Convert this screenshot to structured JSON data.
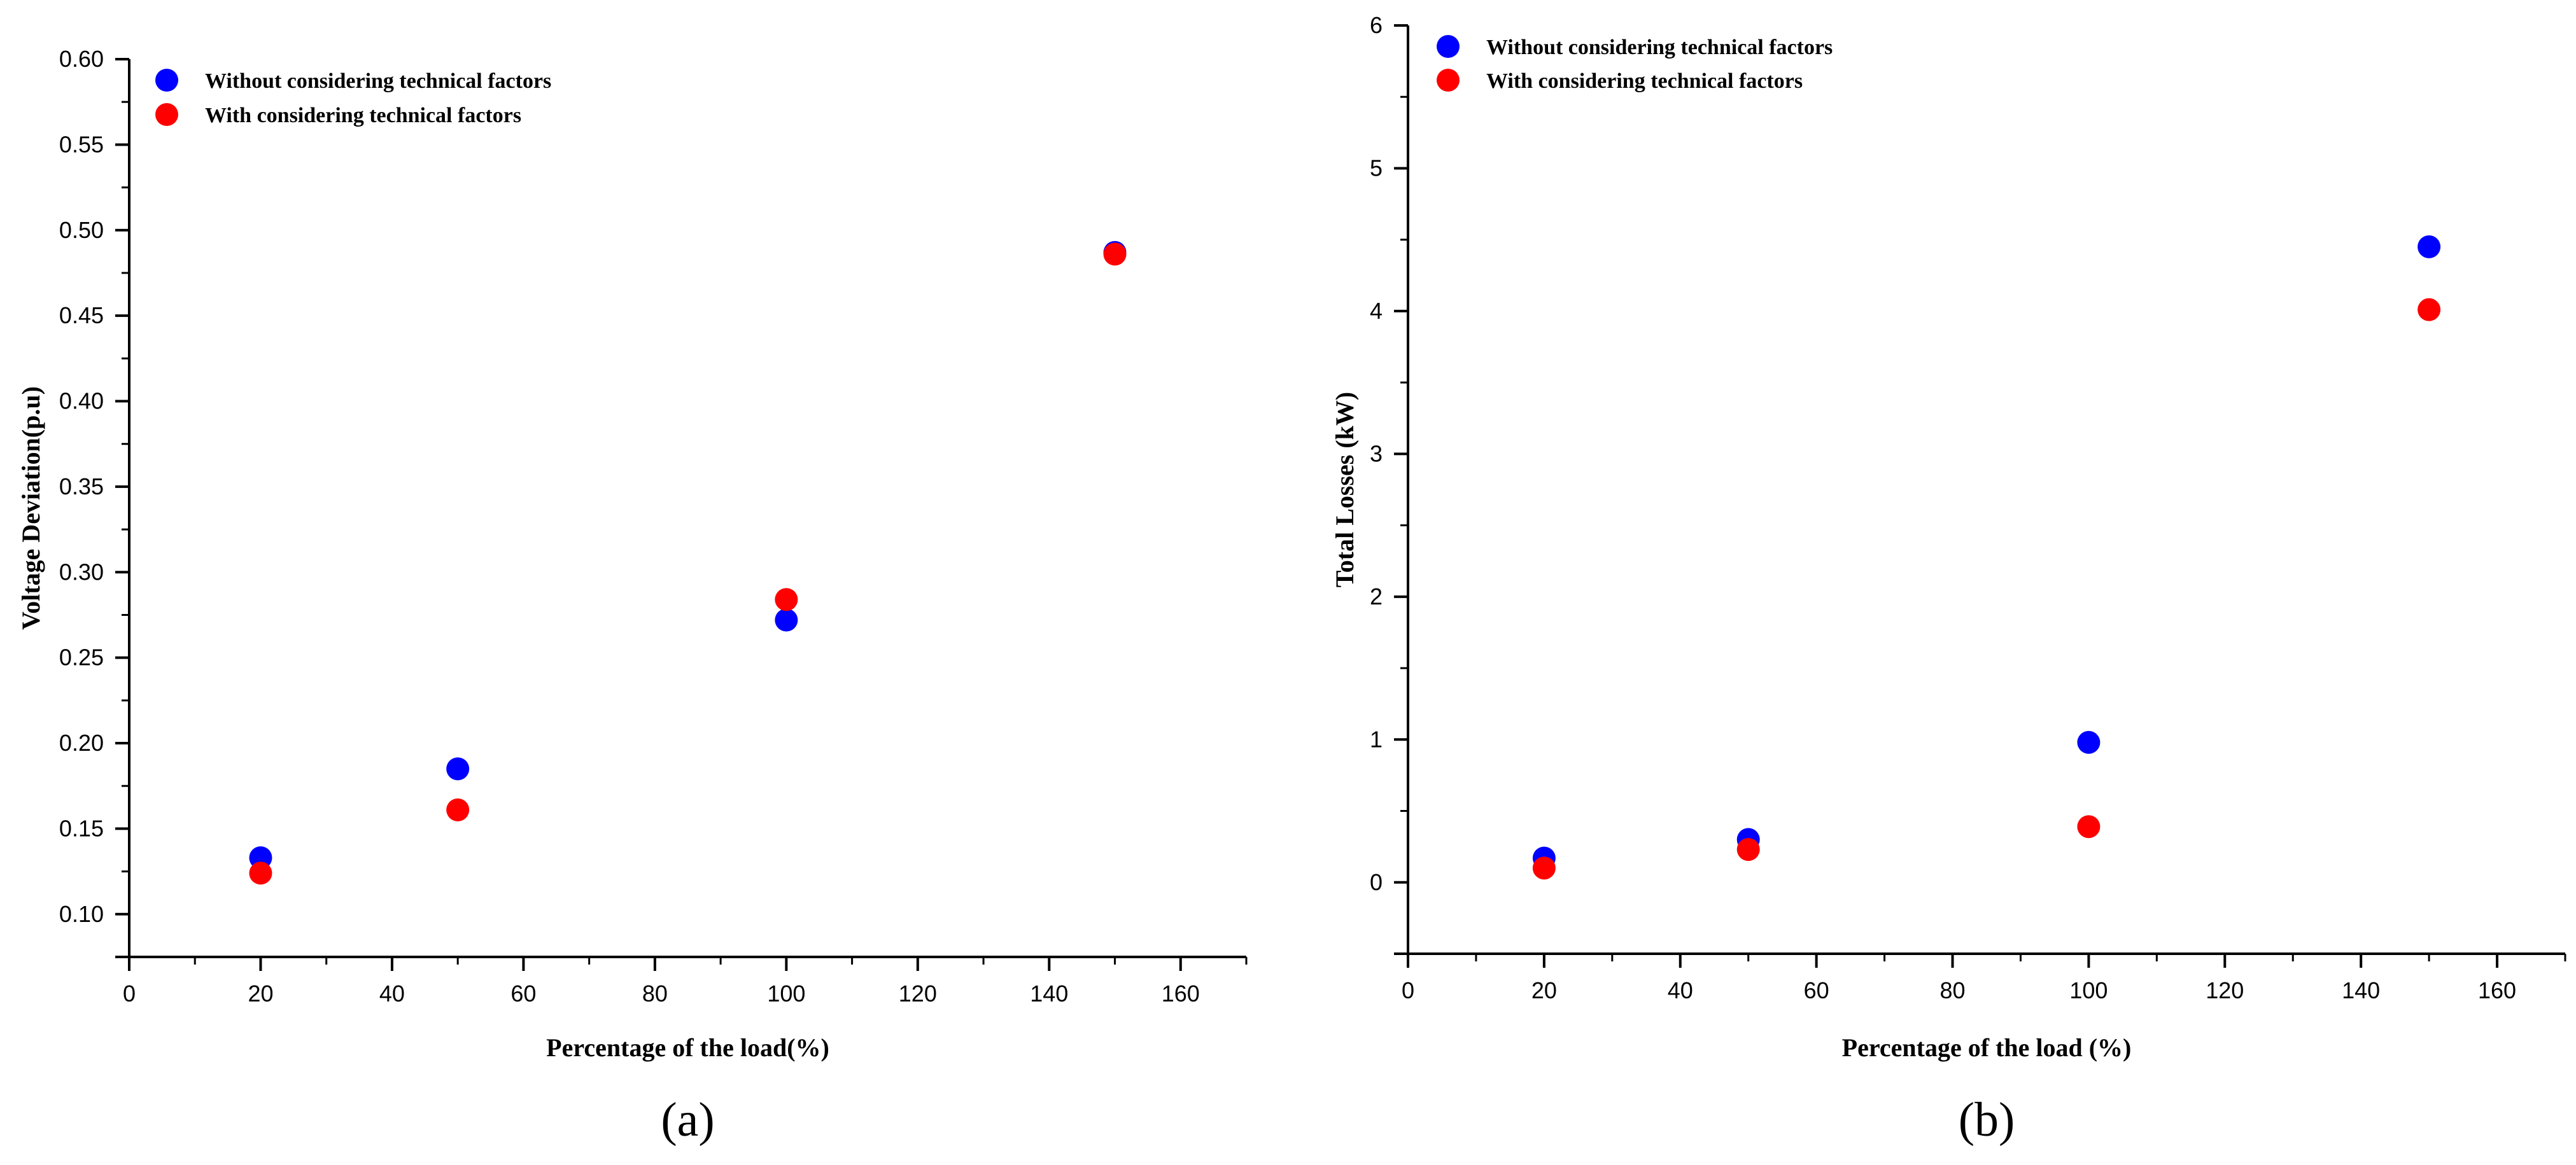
{
  "colors": {
    "series_without": "#0000ff",
    "series_with": "#ff0000",
    "axis": "#000000"
  },
  "chart_data": [
    {
      "type": "scatter",
      "panel_label": "(a)",
      "xlabel": "Percentage of the load(%)",
      "ylabel": "Voltage Deviation(p.u)",
      "xlim": [
        0,
        170
      ],
      "ylim": [
        0.075,
        0.6
      ],
      "xticks": [
        0,
        20,
        40,
        60,
        80,
        100,
        120,
        140,
        160
      ],
      "yticks": [
        0.1,
        0.15,
        0.2,
        0.25,
        0.3,
        0.35,
        0.4,
        0.45,
        0.5,
        0.55,
        0.6
      ],
      "xtick_labels": [
        "0",
        "20",
        "40",
        "60",
        "80",
        "100",
        "120",
        "140",
        "160"
      ],
      "ytick_labels": [
        "0.10",
        "0.15",
        "0.20",
        "0.25",
        "0.30",
        "0.35",
        "0.40",
        "0.45",
        "0.50",
        "0.55",
        "0.60"
      ],
      "legend_position": "top-left",
      "series": [
        {
          "name": "Without considering  technical factors",
          "color": "#0000ff",
          "x": [
            20,
            50,
            100,
            150
          ],
          "y": [
            0.133,
            0.185,
            0.272,
            0.487
          ]
        },
        {
          "name": "With considering  technical factors",
          "color": "#ff0000",
          "x": [
            20,
            50,
            100,
            150
          ],
          "y": [
            0.124,
            0.161,
            0.284,
            0.486
          ]
        }
      ]
    },
    {
      "type": "scatter",
      "panel_label": "(b)",
      "xlabel": "Percentage of the load (%)",
      "ylabel": "Total Losses (kW)",
      "xlim": [
        0,
        170
      ],
      "ylim": [
        -0.5,
        6
      ],
      "xticks": [
        0,
        20,
        40,
        60,
        80,
        100,
        120,
        140,
        160
      ],
      "yticks": [
        0,
        1,
        2,
        3,
        4,
        5,
        6
      ],
      "xtick_labels": [
        "0",
        "20",
        "40",
        "60",
        "80",
        "100",
        "120",
        "140",
        "160"
      ],
      "ytick_labels": [
        "0",
        "1",
        "2",
        "3",
        "4",
        "5",
        "6"
      ],
      "legend_position": "top-left",
      "series": [
        {
          "name": "Without considering  technical factors",
          "color": "#0000ff",
          "x": [
            20,
            50,
            100,
            150
          ],
          "y": [
            0.17,
            0.3,
            0.98,
            4.45
          ]
        },
        {
          "name": "With considering  technical factors",
          "color": "#ff0000",
          "x": [
            20,
            50,
            100,
            150
          ],
          "y": [
            0.1,
            0.23,
            0.39,
            4.01
          ]
        }
      ]
    }
  ]
}
